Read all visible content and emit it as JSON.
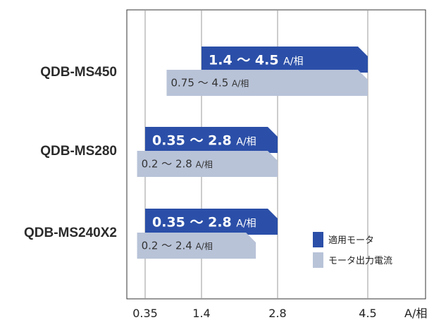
{
  "chart_data": {
    "type": "bar",
    "orientation": "horizontal-range",
    "categories": [
      "QDB-MS450",
      "QDB-MS280",
      "QDB-MS240X2"
    ],
    "x_ticks": [
      "0.35",
      "1.4",
      "2.8",
      "4.5"
    ],
    "x_tick_values": [
      0.35,
      1.4,
      2.8,
      4.5
    ],
    "x_unit": "A/相",
    "grid": true,
    "legend_position": "bottom-right",
    "series": [
      {
        "name": "適用モータ",
        "color": "#2b4fa8",
        "ranges": [
          [
            1.4,
            4.5
          ],
          [
            0.35,
            2.8
          ],
          [
            0.35,
            2.8
          ]
        ],
        "labels": [
          "1.4 ～ 4.5",
          "0.35 ～ 2.8",
          "0.35 ～ 2.8"
        ],
        "unit_label": "A/相"
      },
      {
        "name": "モータ出力電流",
        "color": "#b8c3d8",
        "ranges": [
          [
            0.75,
            4.5
          ],
          [
            0.2,
            2.8
          ],
          [
            0.2,
            2.4
          ]
        ],
        "labels": [
          "0.75 ～ 4.5",
          "0.2 ～ 2.8",
          "0.2 ～ 2.4"
        ],
        "unit_label": "A/相"
      }
    ]
  }
}
